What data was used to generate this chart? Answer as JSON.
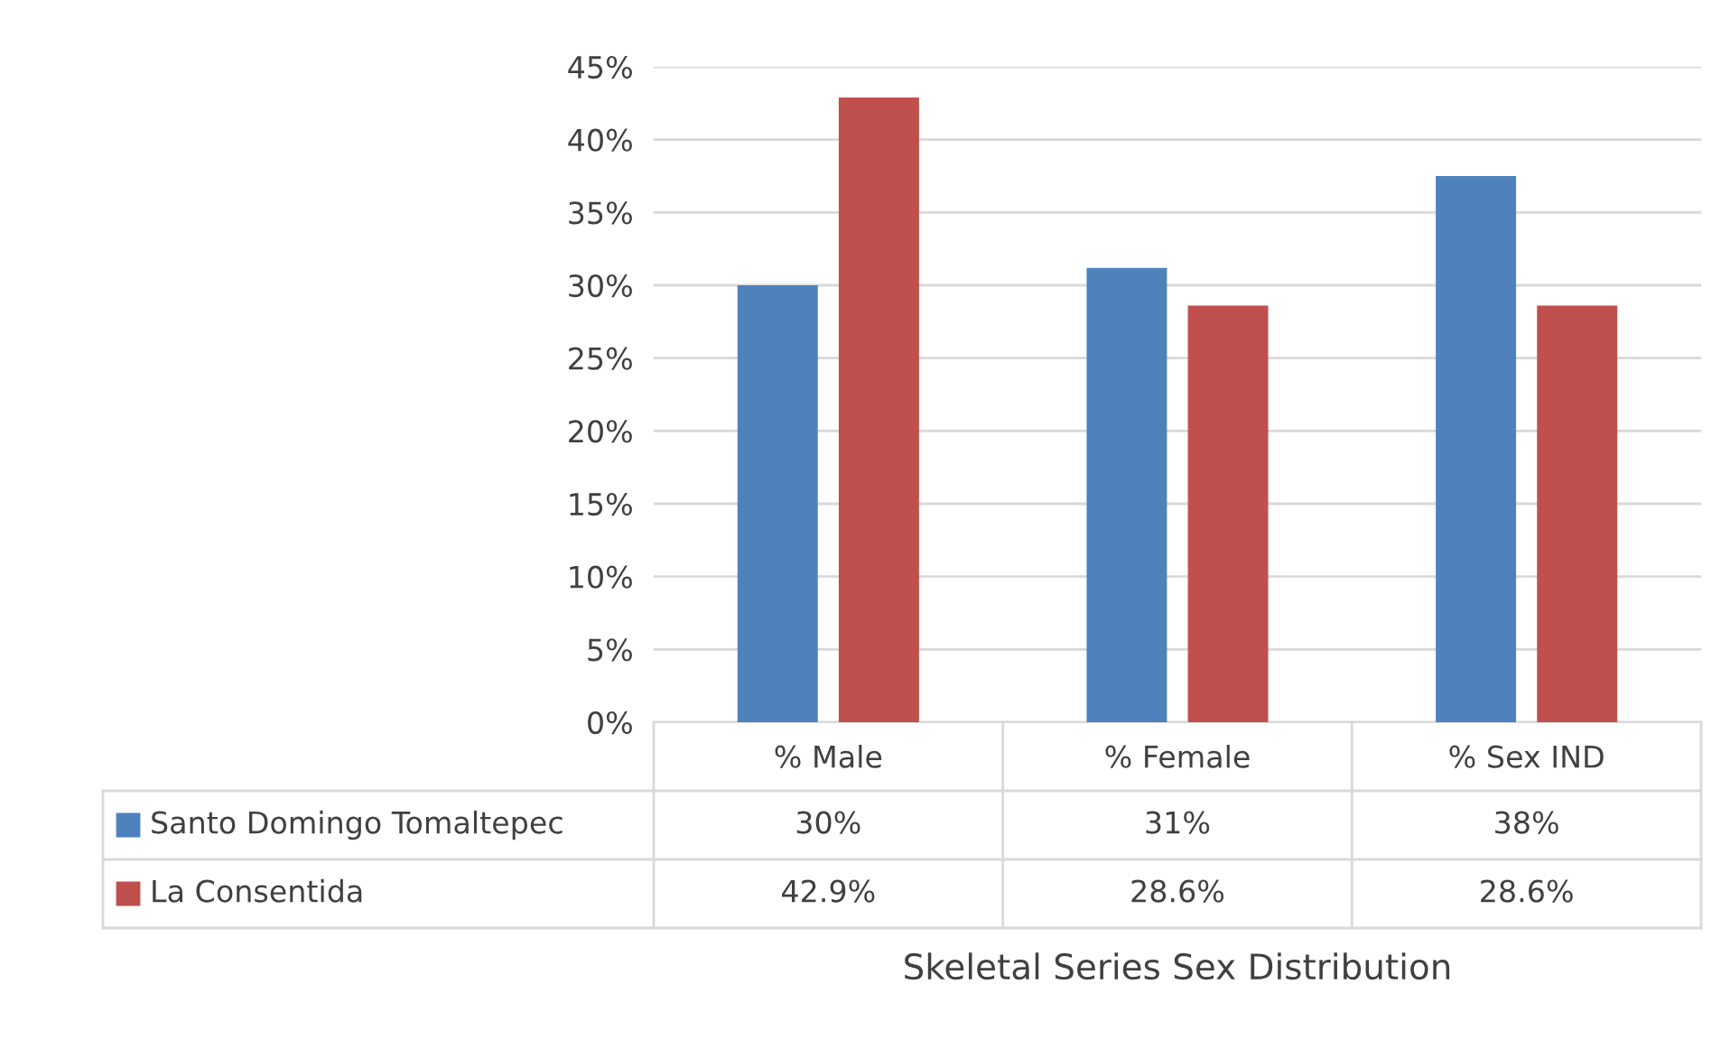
{
  "chart_data": {
    "type": "bar",
    "annotations": [
      "Skeletal Series Sex Distribution"
    ],
    "legend": "bottom left",
    "categories": [
      "% Male",
      "% Female",
      "% Sex IND"
    ],
    "series": [
      {
        "name": "Santo Domingo Tomaltepec",
        "color": "#4f81bd",
        "values": [
          30,
          31.2,
          37.5
        ],
        "value_labels": [
          "30%",
          "31%",
          "38%"
        ]
      },
      {
        "name": "La Consentida",
        "color": "#c0504d",
        "values": [
          42.9,
          28.6,
          28.6
        ],
        "value_labels": [
          "42.9%",
          "28.6%",
          "28.6%"
        ]
      }
    ],
    "ylim": [
      0,
      45
    ],
    "yticks": [
      {
        "value": 0,
        "label": "0%"
      },
      {
        "value": 5,
        "label": "5%"
      },
      {
        "value": 10,
        "label": "10%"
      },
      {
        "value": 15,
        "label": "15%"
      },
      {
        "value": 20,
        "label": "20%"
      },
      {
        "value": 25,
        "label": "25%"
      },
      {
        "value": 30,
        "label": "30%"
      },
      {
        "value": 35,
        "label": "35%"
      },
      {
        "value": 40,
        "label": "40%"
      },
      {
        "value": 45,
        "label": "45%"
      }
    ],
    "grid": "y"
  }
}
